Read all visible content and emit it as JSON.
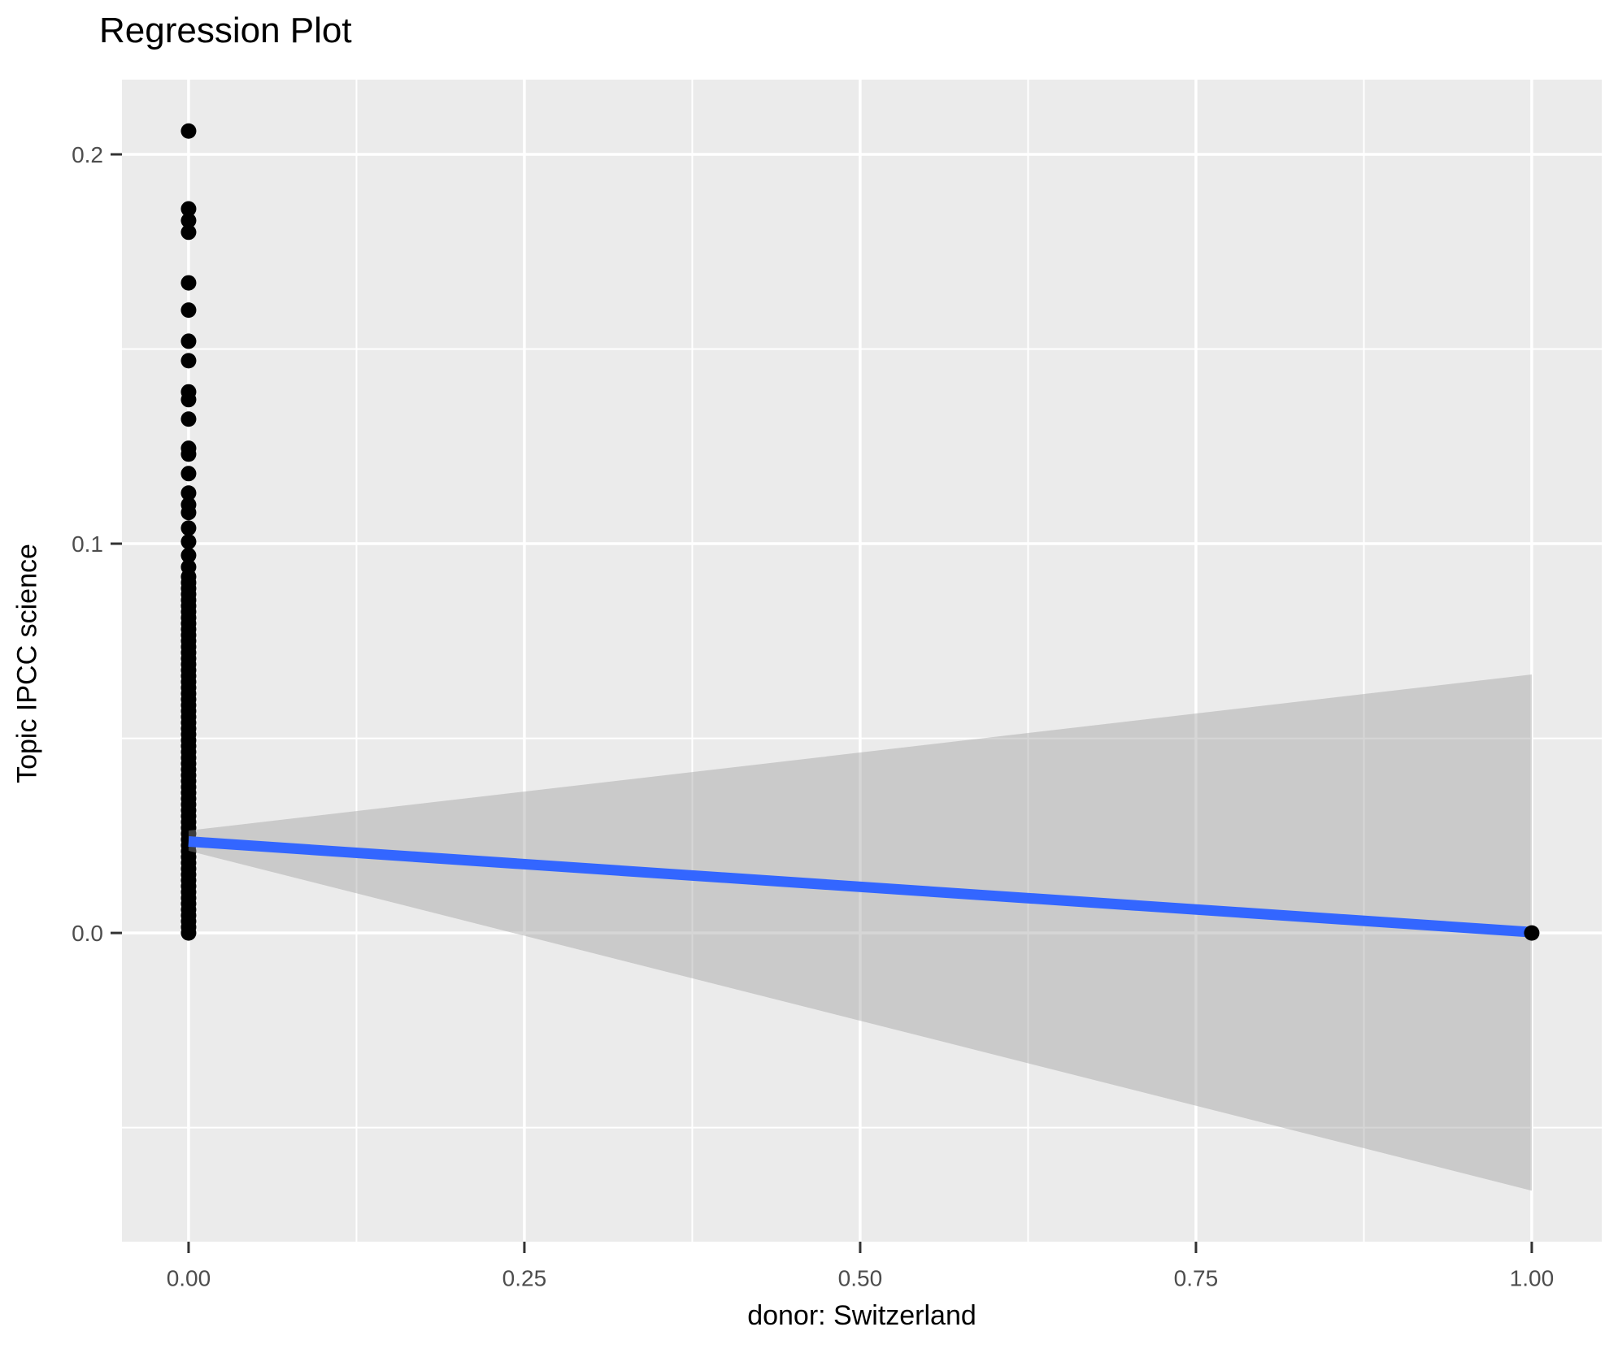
{
  "title": "Regression Plot",
  "chart_data": {
    "type": "scatter",
    "title": "Regression Plot",
    "xlabel": "donor: Switzerland",
    "ylabel": "Topic IPCC science",
    "legend": "none",
    "grid": "on",
    "xlim": [
      -0.0496,
      1.0521
    ],
    "ylim": [
      -0.0793,
      0.2192
    ],
    "x_major_ticks": [
      0.0,
      0.25,
      0.5,
      0.75,
      1.0
    ],
    "x_tick_labels": [
      "0.00",
      "0.25",
      "0.50",
      "0.75",
      "1.00"
    ],
    "x_minor_gridlines": [
      0.125,
      0.375,
      0.625,
      0.875
    ],
    "y_major_ticks": [
      0.0,
      0.1,
      0.2
    ],
    "y_tick_labels": [
      "0.0",
      "0.1",
      "0.2"
    ],
    "y_minor_gridlines": [
      -0.05,
      0.05,
      0.15
    ],
    "points_at_x0_y_values": [
      0.206,
      0.186,
      0.183,
      0.18,
      0.167,
      0.16,
      0.152,
      0.147,
      0.139,
      0.137,
      0.132,
      0.1245,
      0.123,
      0.118,
      0.113,
      0.11,
      0.108,
      0.104,
      0.1005,
      0.097,
      0.094,
      0.0915,
      0.09,
      0.0885,
      0.087,
      0.0855,
      0.084,
      0.0825,
      0.081,
      0.0795,
      0.078,
      0.0765,
      0.075,
      0.0735,
      0.072,
      0.0705,
      0.069,
      0.0675,
      0.066,
      0.0645,
      0.063,
      0.0615,
      0.06,
      0.0585,
      0.057,
      0.0555,
      0.054,
      0.0525,
      0.051,
      0.0495,
      0.048,
      0.0465,
      0.045,
      0.0435,
      0.042,
      0.0405,
      0.039,
      0.0375,
      0.036,
      0.0345,
      0.033,
      0.0315,
      0.03,
      0.0285,
      0.027,
      0.0255,
      0.024,
      0.0225,
      0.021,
      0.0195,
      0.018,
      0.0165,
      0.015,
      0.0135,
      0.012,
      0.0105,
      0.009,
      0.0075,
      0.006,
      0.0045,
      0.003,
      0.0015,
      0.0
    ],
    "point_at_x1": {
      "x": 1.0,
      "y": 0.0
    },
    "regression_line": {
      "x1": 0.0,
      "y1": 0.0235,
      "x2": 1.0,
      "y2": 0.0002
    },
    "confidence_ribbon": {
      "at_x0": {
        "lower": 0.0211,
        "upper": 0.0263
      },
      "at_x1": {
        "lower": -0.0662,
        "upper": 0.0664
      }
    },
    "colors": {
      "panel_background": "#EBEBEB",
      "gridline": "#FFFFFF",
      "point": "#000000",
      "regression_line": "#3366FF",
      "ribbon_fill": "#999999",
      "ribbon_opacity": 0.4,
      "tick_label": "#4D4D4D",
      "tick_mark": "#333333",
      "title_color": "#000000"
    }
  }
}
